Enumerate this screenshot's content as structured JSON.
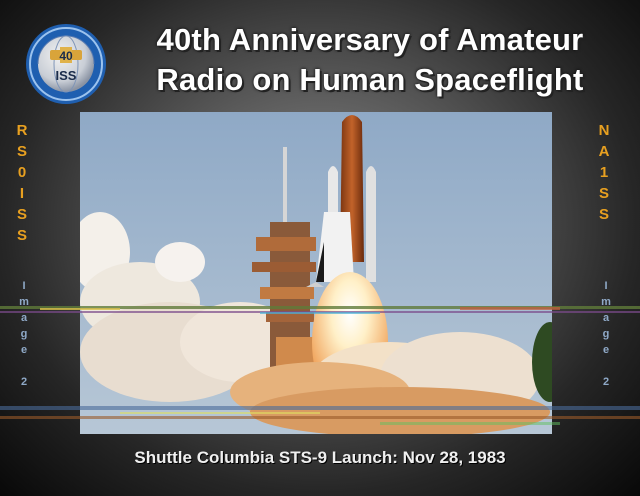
{
  "title": {
    "line1": "40th Anniversary of Amateur",
    "line2": "Radio on Human Spaceflight"
  },
  "logo": {
    "text_top": "40",
    "text_bottom": "ISS"
  },
  "callsigns": {
    "left": "RS0ISS",
    "right": "NA1SS"
  },
  "image_number": {
    "left": "Image 2",
    "right": "Image 2"
  },
  "caption": "Shuttle Columbia STS-9 Launch: Nov 28, 1983",
  "colors": {
    "callsign": "#e8a020",
    "title": "#ffffff",
    "background_center": "#8c8c8c"
  }
}
